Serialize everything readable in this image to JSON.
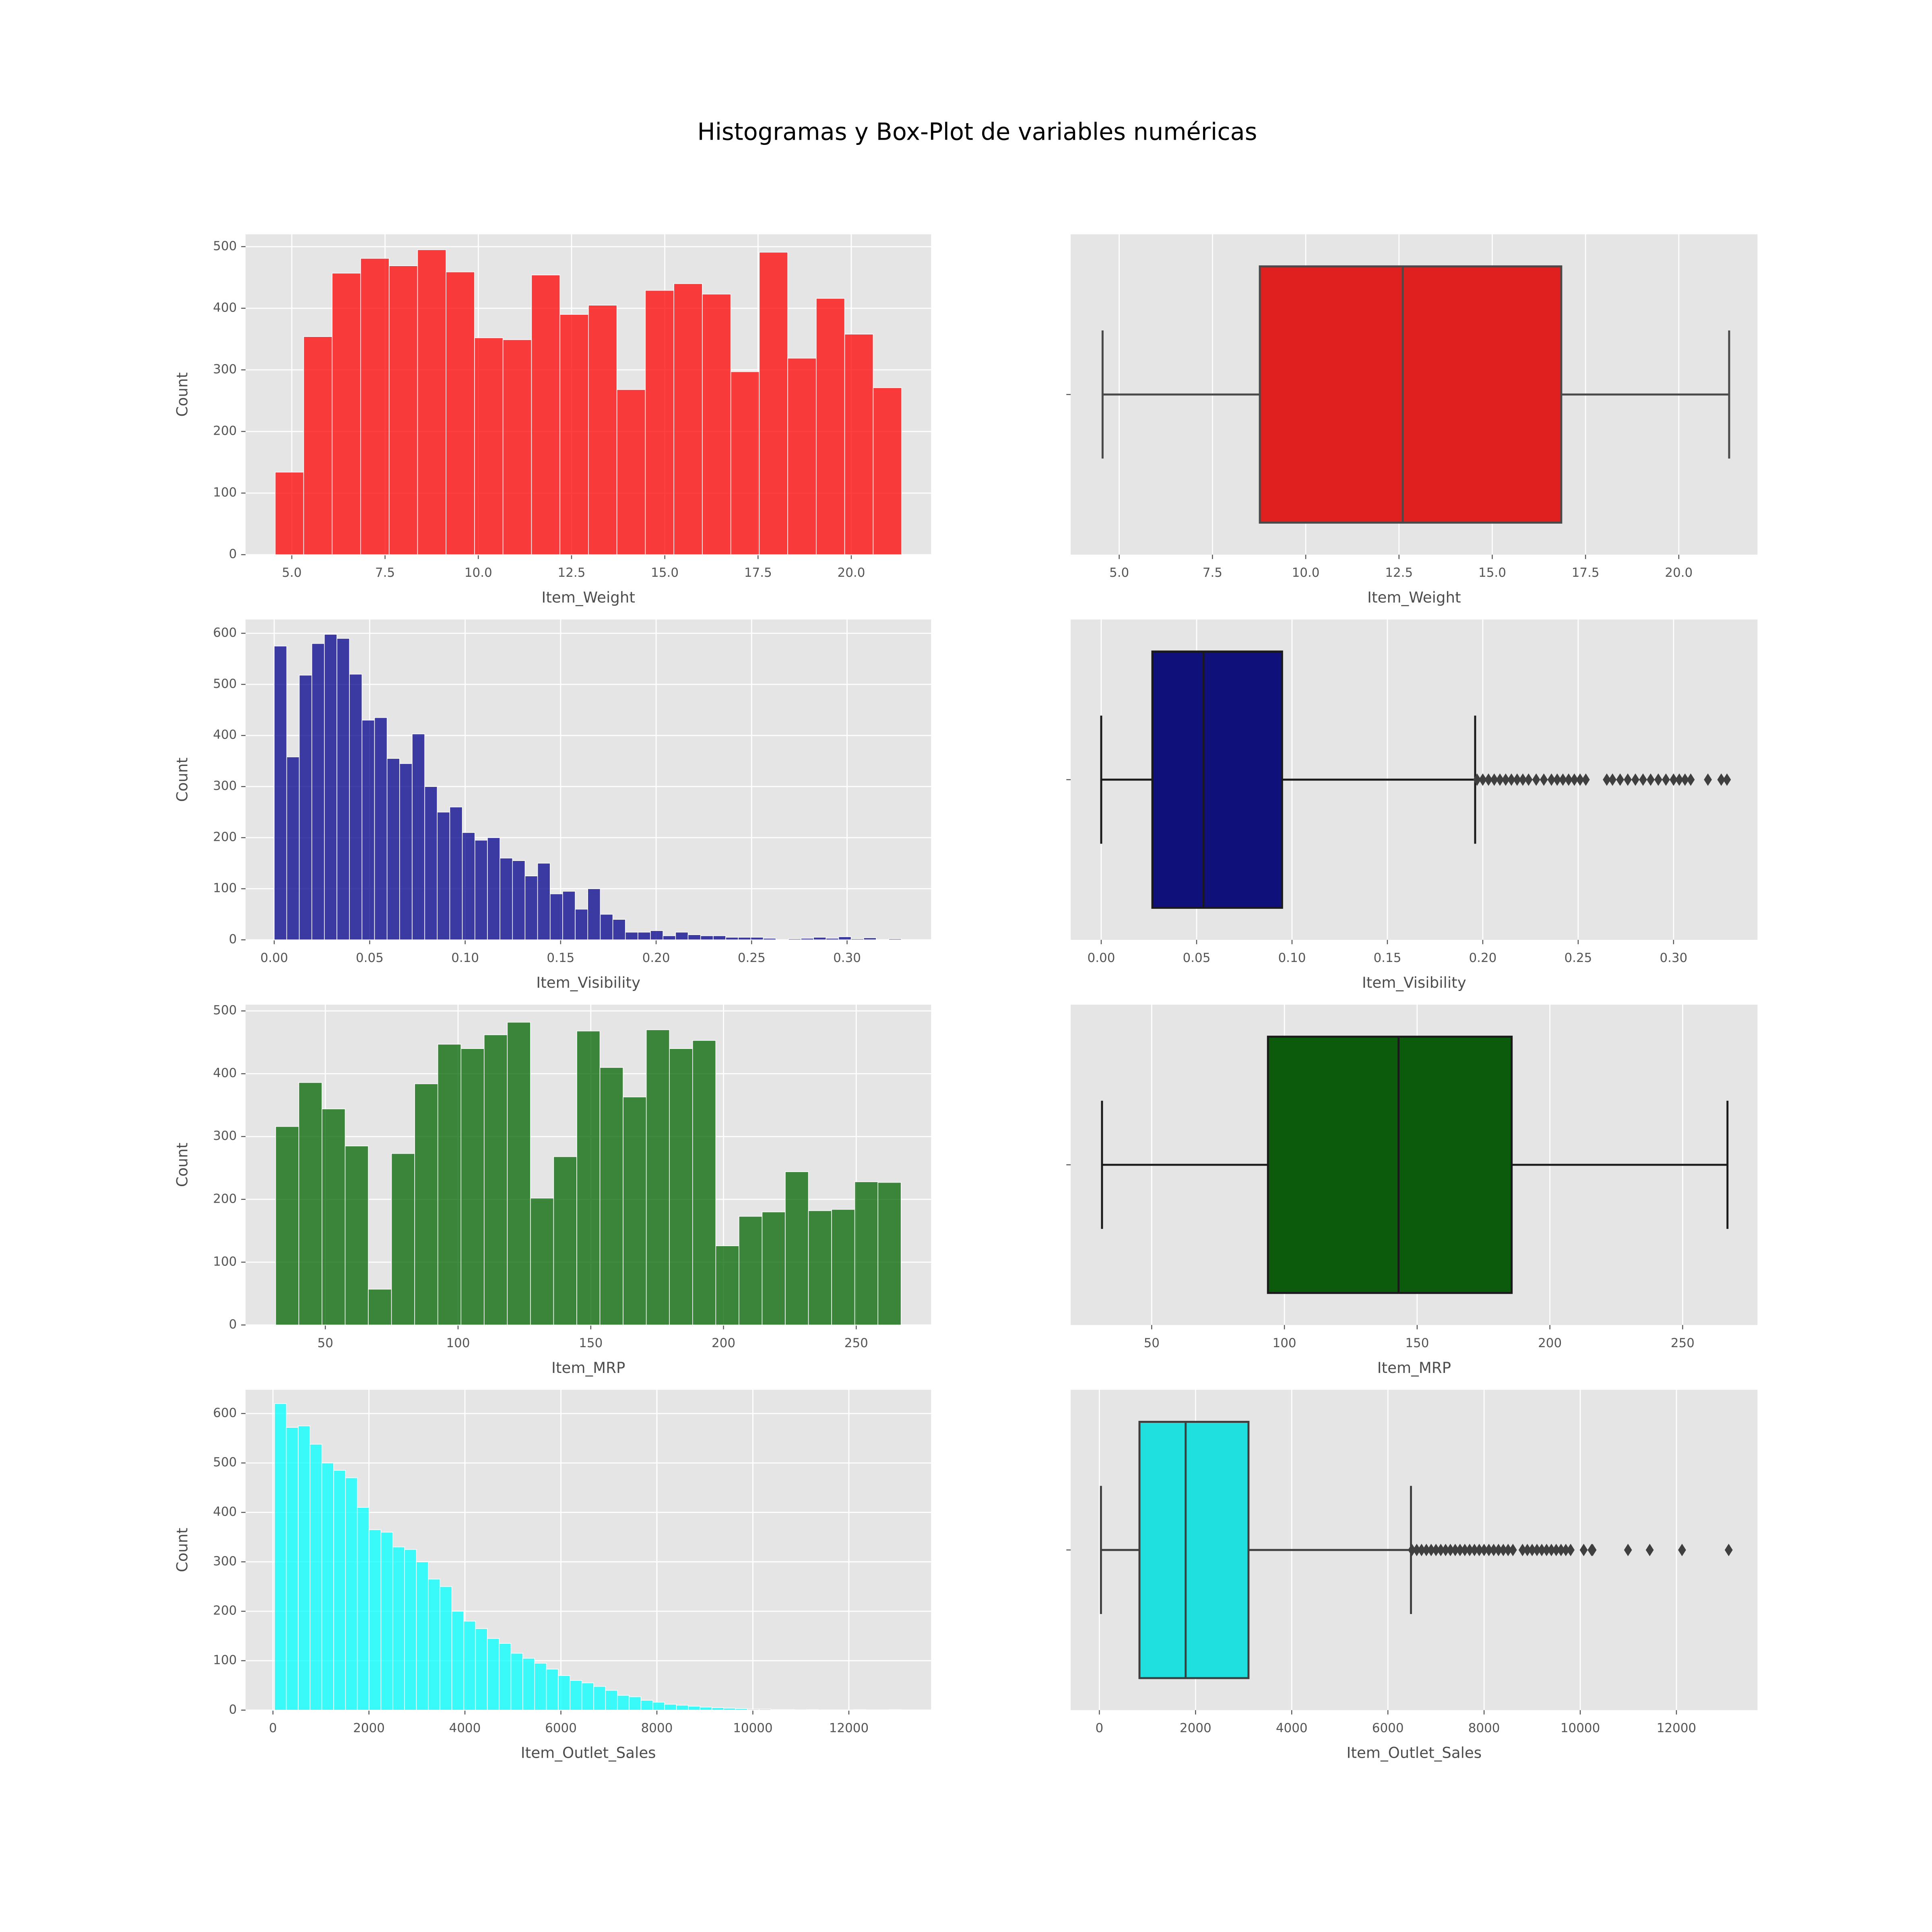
{
  "title": "Histogramas y Box-Plot de variables numéricas",
  "chart_data": [
    {
      "type": "histogram",
      "xlabel": "Item_Weight",
      "ylabel": "Count",
      "color": "#ff0000",
      "grid": true,
      "bins": [
        4.555,
        5.318,
        6.082,
        6.845,
        7.609,
        8.372,
        9.135,
        9.899,
        10.662,
        11.426,
        12.189,
        12.953,
        13.716,
        14.479,
        15.243,
        16.006,
        16.77,
        17.533,
        18.296,
        19.06,
        19.823,
        20.587,
        21.35
      ],
      "counts": [
        134,
        354,
        457,
        481,
        469,
        495,
        459,
        352,
        349,
        454,
        390,
        405,
        268,
        429,
        440,
        423,
        297,
        491,
        319,
        416,
        358,
        271
      ],
      "xlim": [
        3.76,
        22.14
      ],
      "ylim": [
        0,
        520
      ],
      "xticks": [
        {
          "value": 5,
          "label": "5.0"
        },
        {
          "value": 7.5,
          "label": "7.5"
        },
        {
          "value": 10,
          "label": "10.0"
        },
        {
          "value": 12.5,
          "label": "12.5"
        },
        {
          "value": 15,
          "label": "15.0"
        },
        {
          "value": 17.5,
          "label": "17.5"
        },
        {
          "value": 20,
          "label": "20.0"
        }
      ],
      "yticks": [
        0,
        100,
        200,
        300,
        400,
        500
      ]
    },
    {
      "type": "box",
      "xlabel": "Item_Weight",
      "color": "#e01f1f",
      "edgecolor": "#4a4a4a",
      "grid": true,
      "whisker_low": 4.555,
      "q1": 8.77,
      "median": 12.6,
      "q3": 16.85,
      "whisker_high": 21.35,
      "outliers": [],
      "xlim": [
        3.7,
        22.11
      ],
      "xticks": [
        {
          "value": 5,
          "label": "5.0"
        },
        {
          "value": 7.5,
          "label": "7.5"
        },
        {
          "value": 10,
          "label": "10.0"
        },
        {
          "value": 12.5,
          "label": "12.5"
        },
        {
          "value": 15,
          "label": "15.0"
        },
        {
          "value": 17.5,
          "label": "17.5"
        },
        {
          "value": 20,
          "label": "20.0"
        }
      ]
    },
    {
      "type": "histogram",
      "xlabel": "Item_Visibility",
      "ylabel": "Count",
      "color": "#00008b",
      "grid": true,
      "bins": [
        0,
        0.00657,
        0.01314,
        0.0197,
        0.02627,
        0.03284,
        0.03941,
        0.04598,
        0.05254,
        0.05911,
        0.06568,
        0.07225,
        0.07882,
        0.08538,
        0.09195,
        0.09852,
        0.10509,
        0.11166,
        0.11822,
        0.12479,
        0.13136,
        0.13793,
        0.1445,
        0.15106,
        0.15763,
        0.1642,
        0.17077,
        0.17734,
        0.1839,
        0.19047,
        0.19704,
        0.20361,
        0.21018,
        0.21674,
        0.22331,
        0.22988,
        0.23645,
        0.24302,
        0.24958,
        0.25615,
        0.26272,
        0.26929,
        0.27586,
        0.28242,
        0.28899,
        0.29556,
        0.30213,
        0.3087,
        0.31526,
        0.32183,
        0.3284
      ],
      "counts": [
        575,
        358,
        518,
        580,
        598,
        590,
        520,
        430,
        435,
        355,
        345,
        403,
        300,
        250,
        260,
        210,
        195,
        200,
        160,
        155,
        125,
        150,
        90,
        95,
        60,
        100,
        50,
        40,
        15,
        15,
        18,
        8,
        15,
        10,
        8,
        8,
        5,
        5,
        5,
        3,
        0,
        2,
        3,
        5,
        3,
        6,
        2,
        4,
        0,
        2
      ],
      "xlim": [
        -0.015,
        0.344
      ],
      "ylim": [
        0,
        627
      ],
      "xticks": [
        {
          "value": 0,
          "label": "0.00"
        },
        {
          "value": 0.05,
          "label": "0.05"
        },
        {
          "value": 0.1,
          "label": "0.10"
        },
        {
          "value": 0.15,
          "label": "0.15"
        },
        {
          "value": 0.2,
          "label": "0.20"
        },
        {
          "value": 0.25,
          "label": "0.25"
        },
        {
          "value": 0.3,
          "label": "0.30"
        }
      ],
      "yticks": [
        0,
        100,
        200,
        300,
        400,
        500,
        600
      ]
    },
    {
      "type": "box",
      "xlabel": "Item_Visibility",
      "color": "#10107a",
      "edgecolor": "#1a1a1a",
      "grid": true,
      "whisker_low": 0,
      "q1": 0.0268,
      "median": 0.0536,
      "q3": 0.0948,
      "whisker_high": 0.196,
      "outliers": [
        0.197,
        0.2,
        0.203,
        0.206,
        0.209,
        0.212,
        0.215,
        0.218,
        0.221,
        0.224,
        0.228,
        0.232,
        0.236,
        0.239,
        0.242,
        0.245,
        0.248,
        0.251,
        0.254,
        0.265,
        0.268,
        0.272,
        0.276,
        0.28,
        0.284,
        0.288,
        0.292,
        0.296,
        0.3,
        0.303,
        0.306,
        0.309,
        0.318,
        0.325,
        0.328
      ],
      "xlim": [
        -0.016,
        0.344
      ],
      "xticks": [
        {
          "value": 0,
          "label": "0.00"
        },
        {
          "value": 0.05,
          "label": "0.05"
        },
        {
          "value": 0.1,
          "label": "0.10"
        },
        {
          "value": 0.15,
          "label": "0.15"
        },
        {
          "value": 0.2,
          "label": "0.20"
        },
        {
          "value": 0.25,
          "label": "0.25"
        },
        {
          "value": 0.3,
          "label": "0.30"
        }
      ]
    },
    {
      "type": "histogram",
      "xlabel": "Item_MRP",
      "ylabel": "Count",
      "color": "#006400",
      "grid": true,
      "bins": [
        31.29,
        40.02,
        48.74,
        57.47,
        66.19,
        74.92,
        83.65,
        92.37,
        101.1,
        109.82,
        118.55,
        127.28,
        136,
        144.73,
        153.45,
        162.18,
        170.91,
        179.63,
        188.36,
        197.08,
        205.81,
        214.54,
        223.26,
        231.99,
        240.71,
        249.44,
        258.17,
        266.89
      ],
      "counts": [
        316,
        386,
        344,
        285,
        57,
        273,
        384,
        447,
        440,
        462,
        482,
        202,
        268,
        468,
        410,
        363,
        470,
        440,
        453,
        126,
        173,
        180,
        244,
        182,
        184,
        228,
        227
      ],
      "xlim": [
        19.95,
        278.2
      ],
      "ylim": [
        0,
        510
      ],
      "xticks": [
        50,
        100,
        150,
        200,
        250
      ],
      "yticks": [
        0,
        100,
        200,
        300,
        400,
        500
      ]
    },
    {
      "type": "box",
      "xlabel": "Item_MRP",
      "color": "#0c5a0c",
      "edgecolor": "#1a1a1a",
      "grid": true,
      "whisker_low": 31.29,
      "q1": 93.8,
      "median": 143.0,
      "q3": 185.6,
      "whisker_high": 266.89,
      "outliers": [],
      "xlim": [
        19.5,
        278.2
      ],
      "xticks": [
        50,
        100,
        150,
        200,
        250
      ]
    },
    {
      "type": "histogram",
      "xlabel": "Item_Outlet_Sales",
      "ylabel": "Count",
      "color": "#00ffff",
      "grid": true,
      "bins": [
        33.29,
        279.59,
        525.89,
        772.19,
        1018.49,
        1264.79,
        1511.09,
        1757.39,
        2003.69,
        2249.99,
        2496.29,
        2742.59,
        2988.89,
        3235.19,
        3481.49,
        3727.79,
        3974.09,
        4220.39,
        4466.69,
        4712.99,
        4959.29,
        5205.59,
        5451.89,
        5698.19,
        5944.49,
        6190.79,
        6437.09,
        6683.39,
        6929.69,
        7175.99,
        7422.29,
        7668.59,
        7914.89,
        8161.19,
        8407.49,
        8653.79,
        8900.09,
        9146.39,
        9392.69,
        9638.99,
        9885.29,
        10131.59,
        10377.89,
        10624.19,
        10870.49,
        11116.79,
        11363.09,
        11609.39,
        11855.69,
        12101.99,
        12348.29,
        12594.59,
        12840.89,
        13087.19
      ],
      "counts": [
        620,
        572,
        575,
        538,
        500,
        485,
        470,
        410,
        365,
        360,
        330,
        325,
        300,
        265,
        250,
        200,
        180,
        165,
        145,
        135,
        115,
        105,
        95,
        83,
        70,
        60,
        55,
        48,
        40,
        30,
        27,
        20,
        16,
        12,
        10,
        8,
        6,
        5,
        4,
        3,
        2,
        2,
        1,
        1,
        0,
        1,
        0,
        0,
        0,
        1,
        0,
        0,
        1
      ],
      "xlim": [
        -571,
        13714
      ],
      "ylim": [
        0,
        648
      ],
      "xticks": [
        0,
        2000,
        4000,
        6000,
        8000,
        10000,
        12000
      ],
      "yticks": [
        0,
        100,
        200,
        300,
        400,
        500,
        600
      ]
    },
    {
      "type": "box",
      "xlabel": "Item_Outlet_Sales",
      "color": "#20dfdf",
      "edgecolor": "#3f3f3f",
      "grid": true,
      "whisker_low": 33.29,
      "q1": 834,
      "median": 1794,
      "q3": 3101,
      "whisker_high": 6480,
      "outliers": [
        6500,
        6600,
        6700,
        6800,
        6900,
        7000,
        7100,
        7200,
        7300,
        7400,
        7500,
        7600,
        7700,
        7800,
        7900,
        8000,
        8100,
        8200,
        8300,
        8400,
        8500,
        8600,
        8800,
        8900,
        9000,
        9100,
        9200,
        9300,
        9400,
        9500,
        9600,
        9700,
        9800,
        10072,
        10236,
        10256,
        10993,
        11445,
        12117,
        13087
      ],
      "xlim": [
        -596,
        13686
      ],
      "xticks": [
        0,
        2000,
        4000,
        6000,
        8000,
        10000,
        12000
      ]
    }
  ]
}
